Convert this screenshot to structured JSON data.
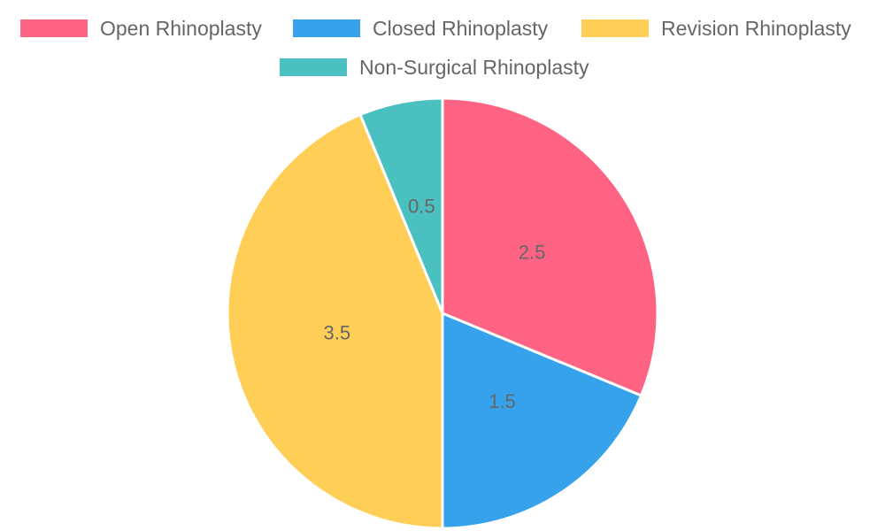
{
  "chart_data": {
    "type": "pie",
    "categories": [
      "Open Rhinoplasty",
      "Closed Rhinoplasty",
      "Revision Rhinoplasty",
      "Non-Surgical Rhinoplasty"
    ],
    "values": [
      2.5,
      1.5,
      3.5,
      0.5
    ],
    "data_labels": [
      "2.5",
      "1.5",
      "3.5",
      "0.5"
    ],
    "colors": [
      "#FF6384",
      "#36A2EB",
      "#FFCE56",
      "#4BC0C0"
    ],
    "legend_position": "top"
  }
}
